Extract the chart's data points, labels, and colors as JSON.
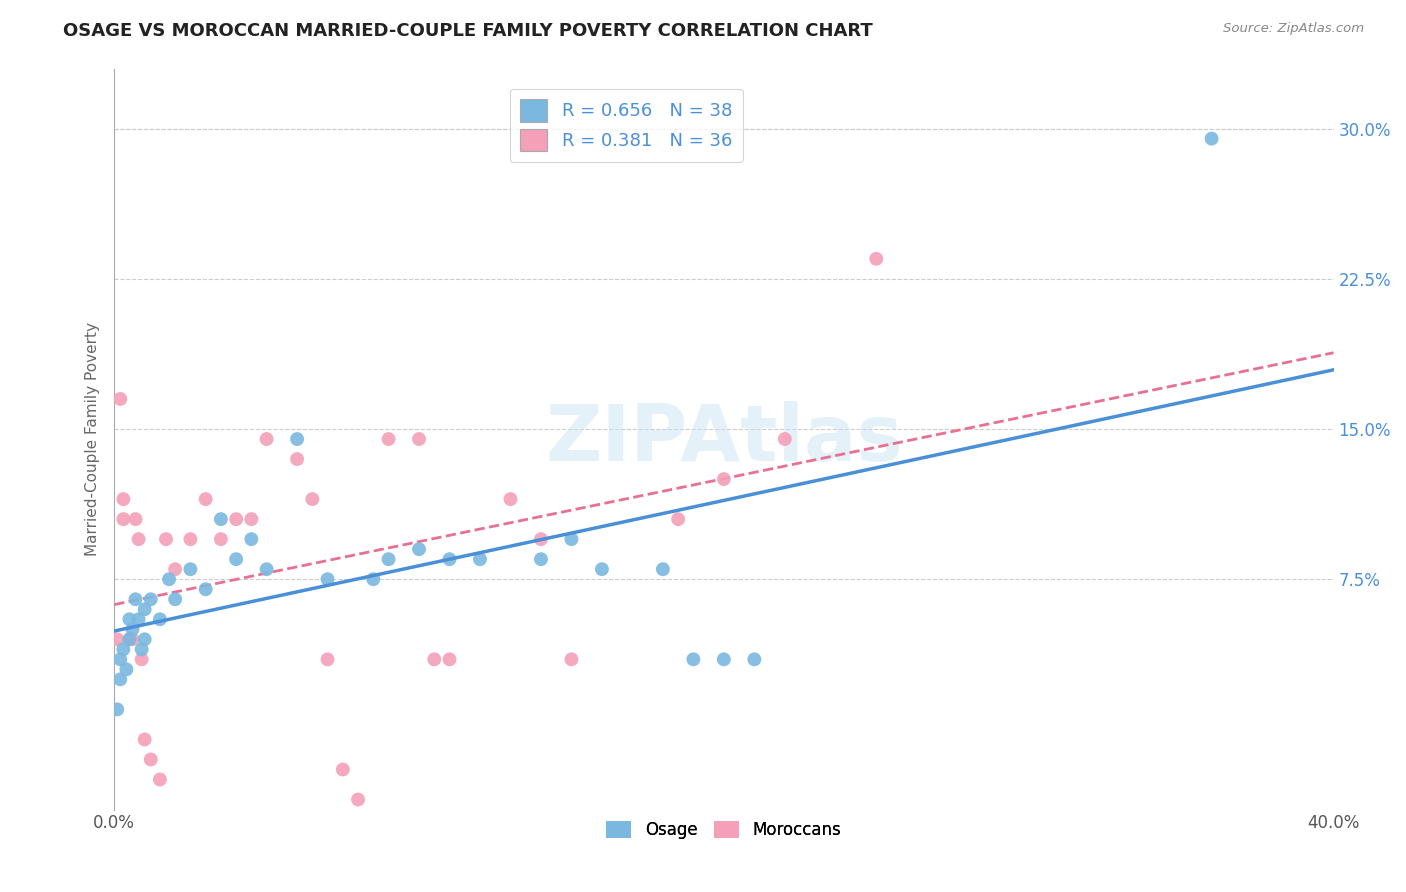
{
  "title": "OSAGE VS MOROCCAN MARRIED-COUPLE FAMILY POVERTY CORRELATION CHART",
  "source_text": "Source: ZipAtlas.com",
  "ylabel": "Married-Couple Family Poverty",
  "xlim": [
    0.0,
    40.0
  ],
  "ylim": [
    -4.0,
    33.0
  ],
  "xtick_labels": [
    "0.0%",
    "40.0%"
  ],
  "xtick_values": [
    0.0,
    40.0
  ],
  "ytick_labels": [
    "7.5%",
    "15.0%",
    "22.5%",
    "30.0%"
  ],
  "ytick_values": [
    7.5,
    15.0,
    22.5,
    30.0
  ],
  "extra_xtick_values": [
    20.0
  ],
  "watermark": "ZIPAtlas",
  "legend_entries": [
    {
      "label": "R = 0.656   N = 38",
      "color": "#aec6e8"
    },
    {
      "label": "R = 0.381   N = 36",
      "color": "#f4b8c1"
    }
  ],
  "legend_bottom_labels": [
    "Osage",
    "Moroccans"
  ],
  "osage_color": "#7ab8e0",
  "moroccan_color": "#f4a0b8",
  "osage_line_color": "#4a90d9",
  "moroccan_line_color": "#e87090",
  "background_color": "#ffffff",
  "grid_color": "#cccccc",
  "title_color": "#333333",
  "osage_points_x": [
    0.1,
    0.2,
    0.2,
    0.3,
    0.4,
    0.5,
    0.5,
    0.6,
    0.7,
    0.8,
    0.9,
    1.0,
    1.0,
    1.2,
    1.5,
    1.8,
    2.0,
    2.5,
    3.0,
    3.5,
    4.0,
    4.5,
    5.0,
    6.0,
    7.0,
    8.5,
    9.0,
    10.0,
    11.0,
    12.0,
    14.0,
    15.0,
    16.0,
    18.0,
    19.0,
    20.0,
    21.0,
    36.0
  ],
  "osage_points_y": [
    1.0,
    2.5,
    3.5,
    4.0,
    3.0,
    4.5,
    5.5,
    5.0,
    6.5,
    5.5,
    4.0,
    4.5,
    6.0,
    6.5,
    5.5,
    7.5,
    6.5,
    8.0,
    7.0,
    10.5,
    8.5,
    9.5,
    8.0,
    14.5,
    7.5,
    7.5,
    8.5,
    9.0,
    8.5,
    8.5,
    8.5,
    9.5,
    8.0,
    8.0,
    3.5,
    3.5,
    3.5,
    29.5
  ],
  "moroccan_points_x": [
    0.1,
    0.2,
    0.3,
    0.3,
    0.5,
    0.6,
    0.7,
    0.8,
    0.9,
    1.0,
    1.2,
    1.5,
    1.7,
    2.0,
    2.5,
    3.0,
    3.5,
    4.0,
    4.5,
    5.0,
    6.0,
    6.5,
    7.0,
    7.5,
    8.0,
    9.0,
    10.0,
    10.5,
    11.0,
    13.0,
    14.0,
    15.0,
    18.5,
    20.0,
    22.0,
    25.0
  ],
  "moroccan_points_y": [
    4.5,
    16.5,
    10.5,
    11.5,
    4.5,
    4.5,
    10.5,
    9.5,
    3.5,
    -0.5,
    -1.5,
    -2.5,
    9.5,
    8.0,
    9.5,
    11.5,
    9.5,
    10.5,
    10.5,
    14.5,
    13.5,
    11.5,
    3.5,
    -2.0,
    -3.5,
    14.5,
    14.5,
    3.5,
    3.5,
    11.5,
    9.5,
    3.5,
    10.5,
    12.5,
    14.5,
    23.5
  ]
}
